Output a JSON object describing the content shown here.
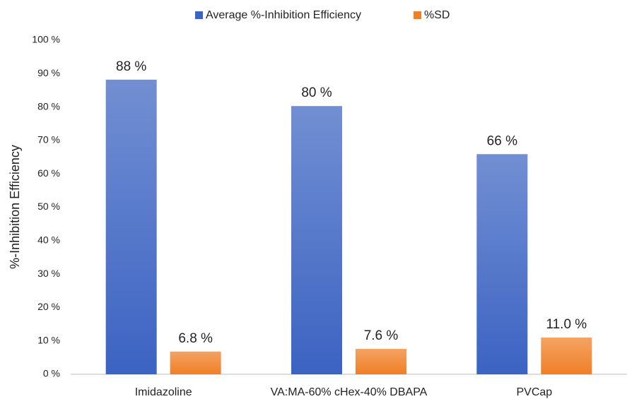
{
  "chart_data": {
    "type": "bar",
    "y_label": "%-Inhibition Efficiency",
    "categories": [
      "Imidazoline",
      "VA:MA-60% cHex-40% DBAPA",
      "PVCap"
    ],
    "series": [
      {
        "name": "Average %-Inhibition Efficiency",
        "color": "#3b63c2",
        "values": [
          88.2,
          80.3,
          65.9
        ],
        "value_labels": [
          "88 %",
          "80 %",
          "66 %"
        ]
      },
      {
        "name": "%SD",
        "color": "#f07f26",
        "values": [
          6.8,
          7.6,
          11.0
        ],
        "value_labels": [
          "6.8 %",
          "7.6 %",
          "11.0 %"
        ]
      }
    ],
    "ylim": [
      0,
      100
    ],
    "yticks": [
      {
        "value": 0,
        "label": "0 %"
      },
      {
        "value": 10,
        "label": "10 %"
      },
      {
        "value": 20,
        "label": "20 %"
      },
      {
        "value": 30,
        "label": "30 %"
      },
      {
        "value": 40,
        "label": "40 %"
      },
      {
        "value": 50,
        "label": "50 %"
      },
      {
        "value": 60,
        "label": "60 %"
      },
      {
        "value": 70,
        "label": "70 %"
      },
      {
        "value": 80,
        "label": "80 %"
      },
      {
        "value": 90,
        "label": "90 %"
      },
      {
        "value": 100,
        "label": "100 %"
      }
    ],
    "grid": false,
    "legend": "top"
  }
}
